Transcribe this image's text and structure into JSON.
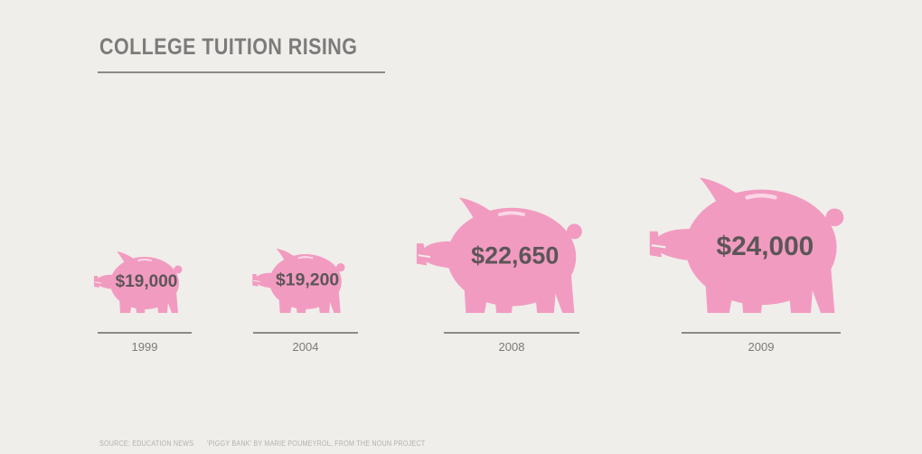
{
  "title": "COLLEGE TUITION RISING",
  "chart_data": {
    "type": "bar",
    "categories": [
      "1999",
      "2004",
      "2008",
      "2009"
    ],
    "values": [
      19000,
      19200,
      22650,
      24000
    ],
    "value_labels": [
      "$19,000",
      "$19,200",
      "$22,650",
      "$24,000"
    ],
    "unit": "$",
    "title": "COLLEGE TUITION RISING",
    "xlabel": "",
    "ylabel": ""
  },
  "colors": {
    "background": "#f0eeea",
    "pig": "#f29bc1",
    "value_text": "#5c5658",
    "year_text": "#7a7a7a",
    "rule": "#8a8a8a"
  },
  "footer": {
    "source": "SOURCE: EDUCATION NEWS",
    "credit": "'PIGGY BANK' BY MARIE POUMEYROL, FROM THE NOUN PROJECT"
  }
}
